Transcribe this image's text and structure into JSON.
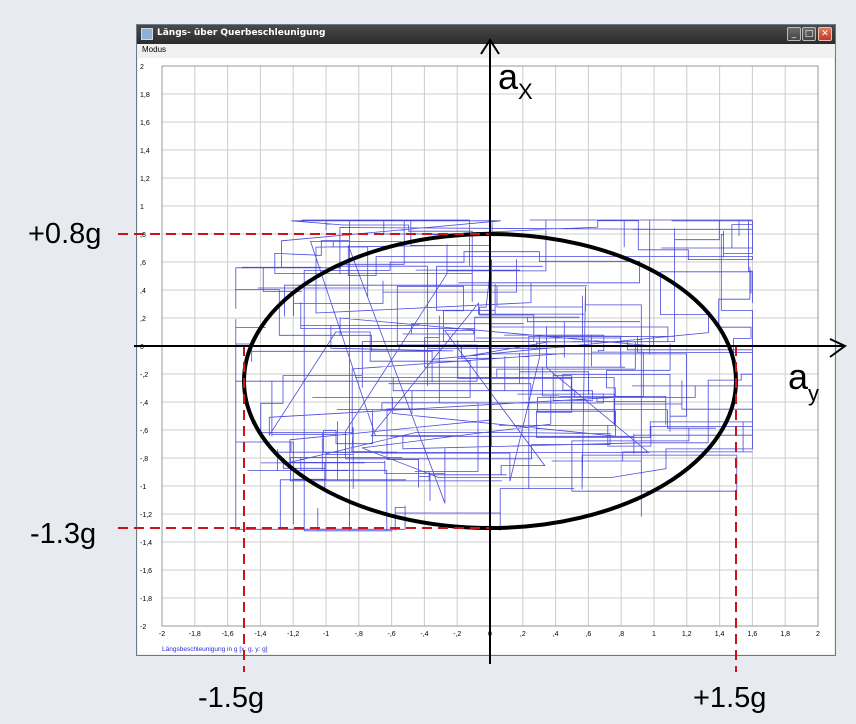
{
  "window": {
    "title": "Längs- über Querbeschleunigung",
    "menu": [
      "Modus"
    ],
    "buttons": {
      "minimize": "_",
      "maximize": "□",
      "close": "✕"
    }
  },
  "colors": {
    "trace": "#2a2ad8",
    "grid": "#cccccc",
    "ellipse": "#000000",
    "dashed": "#c8141e",
    "axis_caption": "#2a2ad8"
  },
  "chart_data": {
    "type": "line",
    "xlabel": "Längsbeschleunigung in g [x: g, y: g]",
    "xlim": [
      -2,
      2
    ],
    "ylim": [
      -2,
      2
    ],
    "grid": true,
    "x_ticks": [
      "-2",
      "-1,8",
      "-1,6",
      "-1,4",
      "-1,2",
      "-1",
      "-,8",
      "-,6",
      "-,4",
      "-,2",
      "0",
      ",2",
      ",4",
      ",6",
      ",8",
      "1",
      "1,2",
      "1,4",
      "1,6",
      "1,8",
      "2"
    ],
    "y_ticks": [
      "2",
      "1,8",
      "1,6",
      "1,4",
      "1,2",
      "1",
      ",8",
      ",6",
      ",4",
      ",2",
      "0",
      "-,2",
      "-,4",
      "-,6",
      "-,8",
      "-1",
      "-1,2",
      "-1,4",
      "-1,6",
      "-1,8",
      "-2"
    ],
    "trace_extent": {
      "x": [
        -1.55,
        1.6
      ],
      "y": [
        -1.32,
        0.9
      ]
    },
    "annotations": {
      "ax_label": "a",
      "ax_sub": "X",
      "ay_label": "a",
      "ay_sub": "y",
      "ellipse": {
        "cx": 0,
        "cy": -0.25,
        "rx": 1.5,
        "ry": 1.05
      },
      "limits": [
        {
          "label": "+0.8g",
          "axis": "y",
          "value": 0.8
        },
        {
          "label": "-1.3g",
          "axis": "y",
          "value": -1.3
        },
        {
          "label": "-1.5g",
          "axis": "x",
          "value": -1.5
        },
        {
          "label": "+1.5g",
          "axis": "x",
          "value": 1.5
        }
      ]
    }
  }
}
